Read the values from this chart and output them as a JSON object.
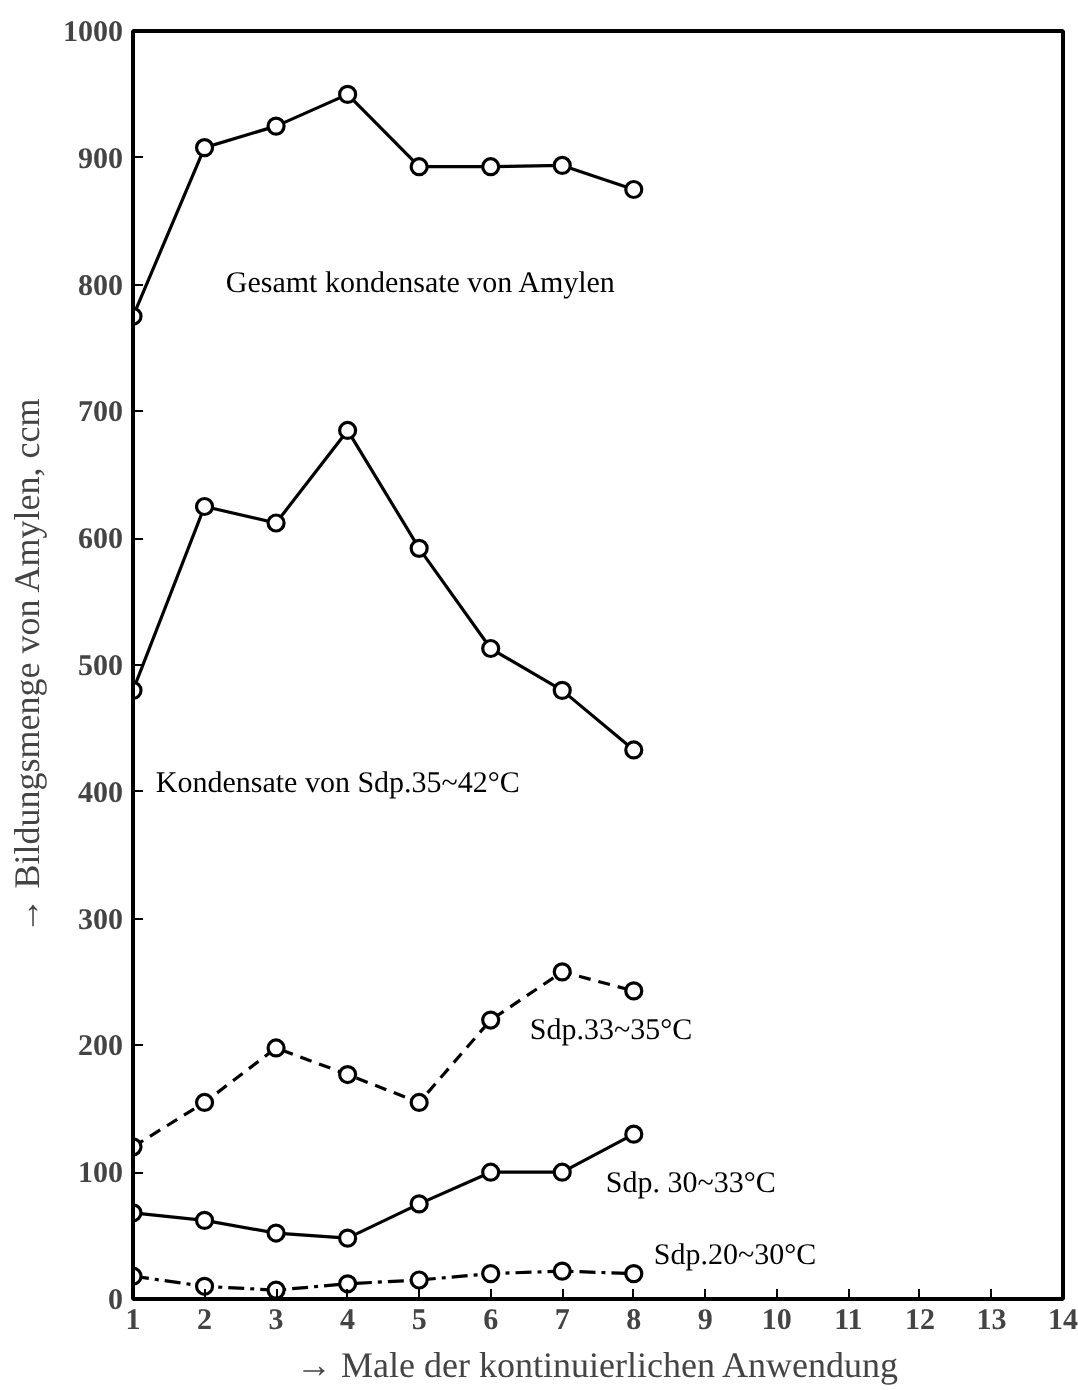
{
  "chart_data": {
    "type": "line",
    "xlabel": "→ Male der kontinuierlichen Anwendung",
    "ylabel": "→ Bildungsmenge von Amylen, ccm",
    "x": [
      1,
      2,
      3,
      4,
      5,
      6,
      7,
      8
    ],
    "series": [
      {
        "name": "Gesamt kondensate von Amylen",
        "color": "#000000",
        "line_style": "solid",
        "values": [
          775,
          908,
          925,
          950,
          893,
          893,
          894,
          875
        ]
      },
      {
        "name": "Kondensate von Sdp.35~42°C",
        "color": "#000000",
        "line_style": "solid",
        "values": [
          480,
          625,
          612,
          685,
          592,
          513,
          480,
          433
        ]
      },
      {
        "name": "Sdp.33~35°C",
        "color": "#000000",
        "line_style": "dashed",
        "values": [
          120,
          155,
          198,
          177,
          155,
          220,
          258,
          243
        ]
      },
      {
        "name": "Sdp. 30~33°C",
        "color": "#000000",
        "line_style": "solid",
        "values": [
          68,
          62,
          52,
          48,
          75,
          100,
          100,
          130
        ]
      },
      {
        "name": "Sdp.20~30°C",
        "color": "#000000",
        "line_style": "dashdot",
        "values": [
          18,
          10,
          7,
          12,
          15,
          20,
          22,
          20
        ]
      }
    ],
    "xlim": [
      1,
      14
    ],
    "xticks": [
      1,
      2,
      3,
      4,
      5,
      6,
      7,
      8,
      9,
      10,
      11,
      12,
      13,
      14
    ],
    "ylim": [
      0,
      1000
    ],
    "yticks": [
      0,
      100,
      200,
      300,
      400,
      500,
      600,
      700,
      800,
      900,
      1000
    ],
    "marker": "circle",
    "grid": false,
    "legend": false
  }
}
